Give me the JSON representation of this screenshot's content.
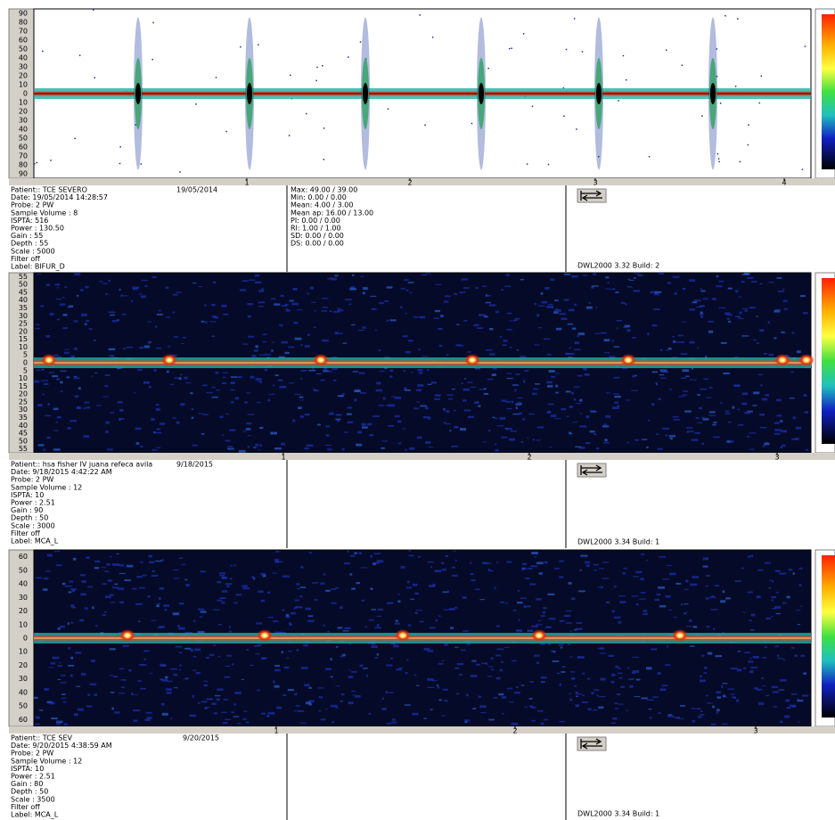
{
  "panels": [
    {
      "scale": [
        90,
        80,
        70,
        60,
        50,
        40,
        30,
        20,
        10,
        0,
        10,
        20,
        30,
        40,
        50,
        60,
        70,
        80,
        90
      ],
      "time_ticks": [
        1,
        2,
        3,
        4
      ],
      "patient": "Patient:: TCE SEVERO",
      "date": "19/05/2014",
      "details": [
        "Date: 19/05/2014 14:28:57",
        "Probe: 2 PW",
        "Sample Volume : 8",
        "ISPTA: 516",
        "Power : 130.50",
        "Gain : 55",
        "Depth : 55",
        "Scale : 5000",
        "Filter off",
        "Label: BIFUR_D"
      ],
      "measurements": [
        "Max: 49.00 / 39.00",
        "Min: 0.00 / 0.00",
        "Mean: 4.00 / 3.00",
        "Mean ap: 16.00 / 13.00",
        "PI: 0.00 / 0.00",
        "RI: 1.00 / 1.00",
        "SD: 0.00 / 0.00",
        "DS: 0.00 / 0.00"
      ],
      "version": "DWL2000 3.32 Build: 2"
    },
    {
      "scale": [
        55,
        50,
        45,
        40,
        35,
        30,
        25,
        20,
        15,
        10,
        5,
        0,
        5,
        10,
        15,
        20,
        25,
        30,
        35,
        40,
        45,
        50,
        55
      ],
      "time_ticks": [
        1,
        2,
        3
      ],
      "patient": "Patient:: hsa fisher IV  juana refeca avila",
      "date": "9/18/2015",
      "details": [
        "Date: 9/18/2015 4:42:22 AM",
        "Probe: 2 PW",
        "Sample Volume : 12",
        "ISPTA: 10",
        "Power : 2.51",
        "Gain : 90",
        "Depth : 50",
        "Scale : 3000",
        "Filter off",
        "Label: MCA_L"
      ],
      "version": "DWL2000 3.34 Build: 1"
    },
    {
      "scale": [
        60,
        50,
        40,
        30,
        20,
        10,
        0,
        10,
        20,
        30,
        40,
        50,
        60
      ],
      "time_ticks": [
        1,
        2,
        3
      ],
      "patient": "Patient:: TCE SEV",
      "date": "9/20/2015",
      "details": [
        "Date: 9/20/2015 4:38:59 AM",
        "Probe: 2 PW",
        "Sample Volume : 12",
        "ISPTA: 10",
        "Power : 2.51",
        "Gain : 80",
        "Depth : 50",
        "Scale : 3500",
        "Filter off",
        "Label: MCA_L"
      ],
      "version": "DWL2000 3.34 Build: 1"
    }
  ]
}
